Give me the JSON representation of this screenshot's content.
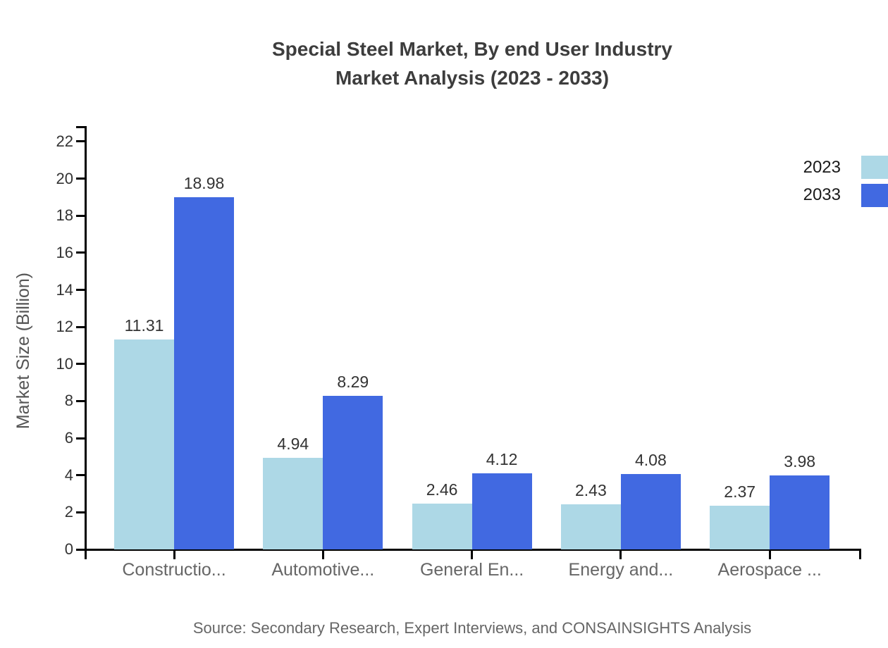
{
  "title": {
    "line1": "Special Steel Market, By end User Industry",
    "line2": "Market Analysis (2023 - 2033)"
  },
  "chart_data": {
    "type": "bar",
    "title": "Special Steel Market, By end User Industry Market Analysis (2023 - 2033)",
    "categories": [
      "Constructio...",
      "Automotive...",
      "General En...",
      "Energy and...",
      "Aerospace ..."
    ],
    "series": [
      {
        "name": "2023",
        "color": "#ADD8E6",
        "values": [
          11.31,
          4.94,
          2.46,
          2.43,
          2.37
        ]
      },
      {
        "name": "2033",
        "color": "#4169E1",
        "values": [
          18.98,
          8.29,
          4.12,
          4.08,
          3.98
        ]
      }
    ],
    "xlabel": "",
    "ylabel": "Market Size (Billion)",
    "ylim": [
      0,
      22
    ],
    "yticks": [
      0,
      2,
      4,
      6,
      8,
      10,
      12,
      14,
      16,
      18,
      20,
      22
    ],
    "grid": false,
    "legend_position": "top-right",
    "value_labels_decimals": 2
  },
  "legend": {
    "items": [
      {
        "label": "2023",
        "color": "#ADD8E6"
      },
      {
        "label": "2033",
        "color": "#4169E1"
      }
    ]
  },
  "source": "Source: Secondary Research, Expert Interviews, and CONSAINSIGHTS Analysis",
  "colors": {
    "series_2023": "#ADD8E6",
    "series_2033": "#4169E1",
    "axis": "#000000",
    "tick_label": "#333333",
    "category_label": "#666666",
    "title_text": "#3d3d3d",
    "source_text": "#666666",
    "y_axis_title": "#555555",
    "background": "#ffffff"
  }
}
